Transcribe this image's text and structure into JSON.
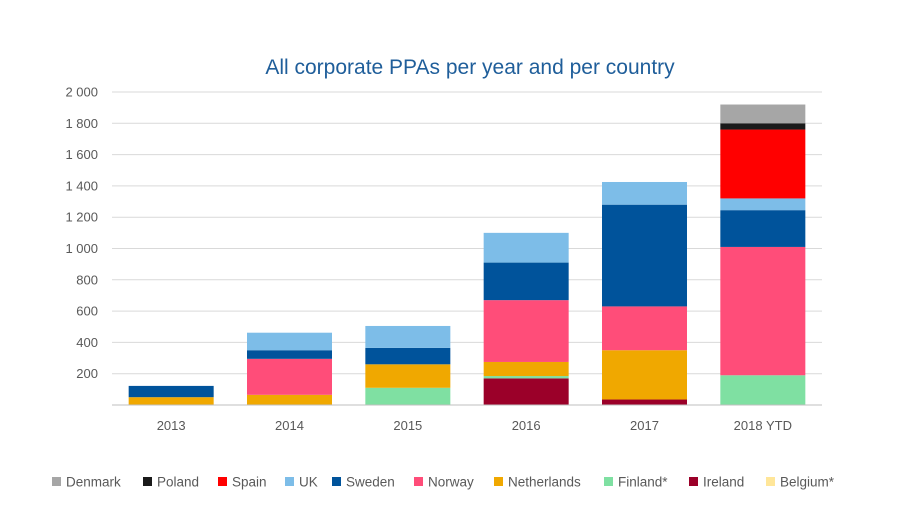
{
  "chart_data": {
    "type": "bar",
    "stacked": true,
    "title": "All corporate PPAs per year and per country",
    "xlabel": "",
    "ylabel": "",
    "ylim": [
      0,
      2000
    ],
    "yticks": [
      200,
      400,
      600,
      800,
      1000,
      1200,
      1400,
      1600,
      1800,
      2000
    ],
    "ytick_labels": [
      "200",
      "400",
      "600",
      "800",
      "1 000",
      "1 200",
      "1 400",
      "1 600",
      "1 800",
      "2 000"
    ],
    "categories": [
      "2013",
      "2014",
      "2015",
      "2016",
      "2017",
      "2018 YTD"
    ],
    "grid": true,
    "legend_position": "bottom",
    "series": [
      {
        "name": "Belgium*",
        "color": "#ffe699",
        "values": [
          0,
          0,
          0,
          0,
          0,
          0
        ]
      },
      {
        "name": "Ireland",
        "color": "#9b0029",
        "values": [
          0,
          0,
          0,
          170,
          35,
          0
        ]
      },
      {
        "name": "Finland*",
        "color": "#7fe0a2",
        "values": [
          0,
          0,
          110,
          15,
          0,
          190
        ]
      },
      {
        "name": "Netherlands",
        "color": "#f0a800",
        "values": [
          50,
          65,
          150,
          90,
          315,
          0
        ]
      },
      {
        "name": "Norway",
        "color": "#ff4d79",
        "values": [
          0,
          230,
          0,
          395,
          280,
          820
        ]
      },
      {
        "name": "Sweden",
        "color": "#00539b",
        "values": [
          72,
          55,
          105,
          240,
          650,
          235
        ]
      },
      {
        "name": "UK",
        "color": "#7dbde8",
        "values": [
          0,
          112,
          140,
          190,
          145,
          75
        ]
      },
      {
        "name": "Spain",
        "color": "#ff0000",
        "values": [
          0,
          0,
          0,
          0,
          0,
          440
        ]
      },
      {
        "name": "Poland",
        "color": "#1a1a1a",
        "values": [
          0,
          0,
          0,
          0,
          0,
          40
        ]
      },
      {
        "name": "Denmark",
        "color": "#a6a6a6",
        "values": [
          0,
          0,
          0,
          0,
          0,
          120
        ]
      }
    ],
    "legend_order": [
      "Denmark",
      "Poland",
      "Spain",
      "UK",
      "Sweden",
      "Norway",
      "Netherlands",
      "Finland*",
      "Ireland",
      "Belgium*"
    ]
  }
}
